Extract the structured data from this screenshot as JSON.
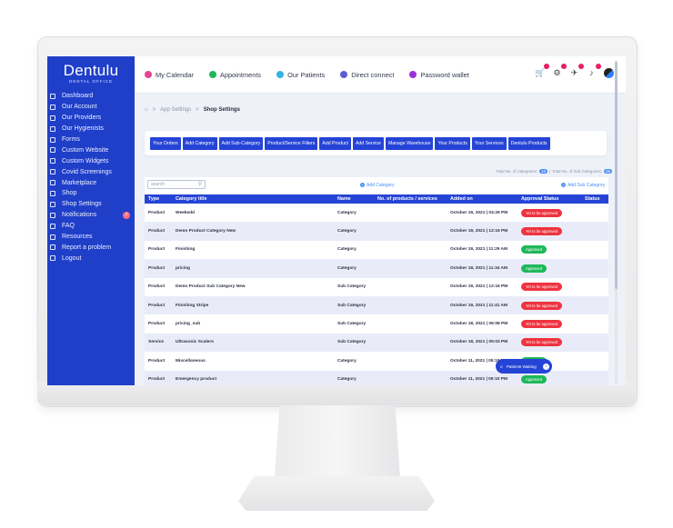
{
  "brand": {
    "name": "Dentulu",
    "subtitle": "DENTAL OFFICE"
  },
  "sidebar": {
    "items": [
      {
        "label": "Dashboard",
        "icon": "dashboard-icon"
      },
      {
        "label": "Our Account",
        "icon": "account-icon"
      },
      {
        "label": "Our Providers",
        "icon": "providers-icon"
      },
      {
        "label": "Our Hygienists",
        "icon": "hygienists-icon"
      },
      {
        "label": "Forms",
        "icon": "forms-icon"
      },
      {
        "label": "Custom Website",
        "icon": "website-icon"
      },
      {
        "label": "Custom Widgets",
        "icon": "widgets-icon"
      },
      {
        "label": "Covid Screenings",
        "icon": "covid-icon"
      },
      {
        "label": "Marketplace",
        "icon": "marketplace-icon"
      },
      {
        "label": "Shop",
        "icon": "shop-icon"
      },
      {
        "label": "Shop Settings",
        "icon": "shop-settings-icon"
      },
      {
        "label": "Notifications",
        "icon": "bell-icon",
        "badge": "7"
      },
      {
        "label": "FAQ",
        "icon": "faq-icon"
      },
      {
        "label": "Resources",
        "icon": "resources-icon"
      },
      {
        "label": "Report a problem",
        "icon": "warning-icon"
      },
      {
        "label": "Logout",
        "icon": "logout-icon"
      }
    ]
  },
  "topbar": {
    "links": [
      {
        "label": "My Calendar",
        "color": "#e84393"
      },
      {
        "label": "Appointments",
        "color": "#1eb85a"
      },
      {
        "label": "Our Patients",
        "color": "#33b5e5"
      },
      {
        "label": "Direct connect",
        "color": "#5b5bd6"
      },
      {
        "label": "Password wallet",
        "color": "#9b30d9"
      }
    ]
  },
  "breadcrumb": {
    "home_icon": "home-icon",
    "parent": "App Settings",
    "separator": ">",
    "current": "Shop Settings"
  },
  "tabs": [
    "Your Orders",
    "Add Category",
    "Add Sub-Category",
    "Product/Service Filters",
    "Add Product",
    "Add Service",
    "Manage Warehouse",
    "Your Products",
    "Your Services",
    "Dentulu Products"
  ],
  "counts": {
    "categories_label": "Total No. of Categories:",
    "categories_value": "10",
    "separator": "|",
    "subcategories_label": "Total No. of Sub Categories:",
    "subcategories_value": "08"
  },
  "search": {
    "placeholder": "search"
  },
  "actions": {
    "add_category": "Add Category",
    "add_subcategory": "Add Sub Category"
  },
  "table": {
    "headers": [
      "Type",
      "Category title",
      "Name",
      "No. of products / services",
      "Added on",
      "Approval Status",
      "Status"
    ],
    "rows": [
      {
        "type": "Product",
        "title": "Weekedd",
        "name": "Category",
        "count": "",
        "added": "October 19, 2021 | 04:29 PM",
        "approval": "Yet to be approved",
        "approval_color": "red"
      },
      {
        "type": "Product",
        "title": "Demo Product Category New",
        "name": "Category",
        "count": "",
        "added": "October 19, 2021 | 12:16 PM",
        "approval": "Yet to be approved",
        "approval_color": "red"
      },
      {
        "type": "Product",
        "title": "Finishing",
        "name": "Category",
        "count": "",
        "added": "October 19, 2021 | 11:29 AM",
        "approval": "Approved",
        "approval_color": "green"
      },
      {
        "type": "Product",
        "title": "pricing",
        "name": "Category",
        "count": "",
        "added": "October 18, 2021 | 11:34 AM",
        "approval": "Approved",
        "approval_color": "green"
      },
      {
        "type": "Product",
        "title": "Demo Product Sub Category New",
        "name": "Sub Category",
        "count": "",
        "added": "October 19, 2021 | 12:16 PM",
        "approval": "Yet to be approved",
        "approval_color": "red"
      },
      {
        "type": "Product",
        "title": "Finishing Stripe",
        "name": "Sub Category",
        "count": "",
        "added": "October 19, 2021 | 11:41 AM",
        "approval": "Yet to be approved",
        "approval_color": "red"
      },
      {
        "type": "Product",
        "title": "pricing_sub",
        "name": "Sub Category",
        "count": "",
        "added": "October 18, 2021 | 06:08 PM",
        "approval": "Yet to be approved",
        "approval_color": "red"
      },
      {
        "type": "Service",
        "title": "Ultrasonic Scalers",
        "name": "Sub Category",
        "count": "",
        "added": "October 18, 2021 | 05:03 PM",
        "approval": "Yet to be approved",
        "approval_color": "red"
      },
      {
        "type": "Product",
        "title": "Miscellaneous",
        "name": "Category",
        "count": "",
        "added": "October 11, 2021 | 05:19 PM",
        "approval": "Approved",
        "approval_color": "green"
      },
      {
        "type": "Product",
        "title": "Emergency product",
        "name": "Category",
        "count": "",
        "added": "October 11, 2021 | 05:10 PM",
        "approval": "Approved",
        "approval_color": "green"
      }
    ]
  },
  "patients_waiting": {
    "label": "Patients Waiting",
    "icon": "patients-waiting-icon"
  }
}
